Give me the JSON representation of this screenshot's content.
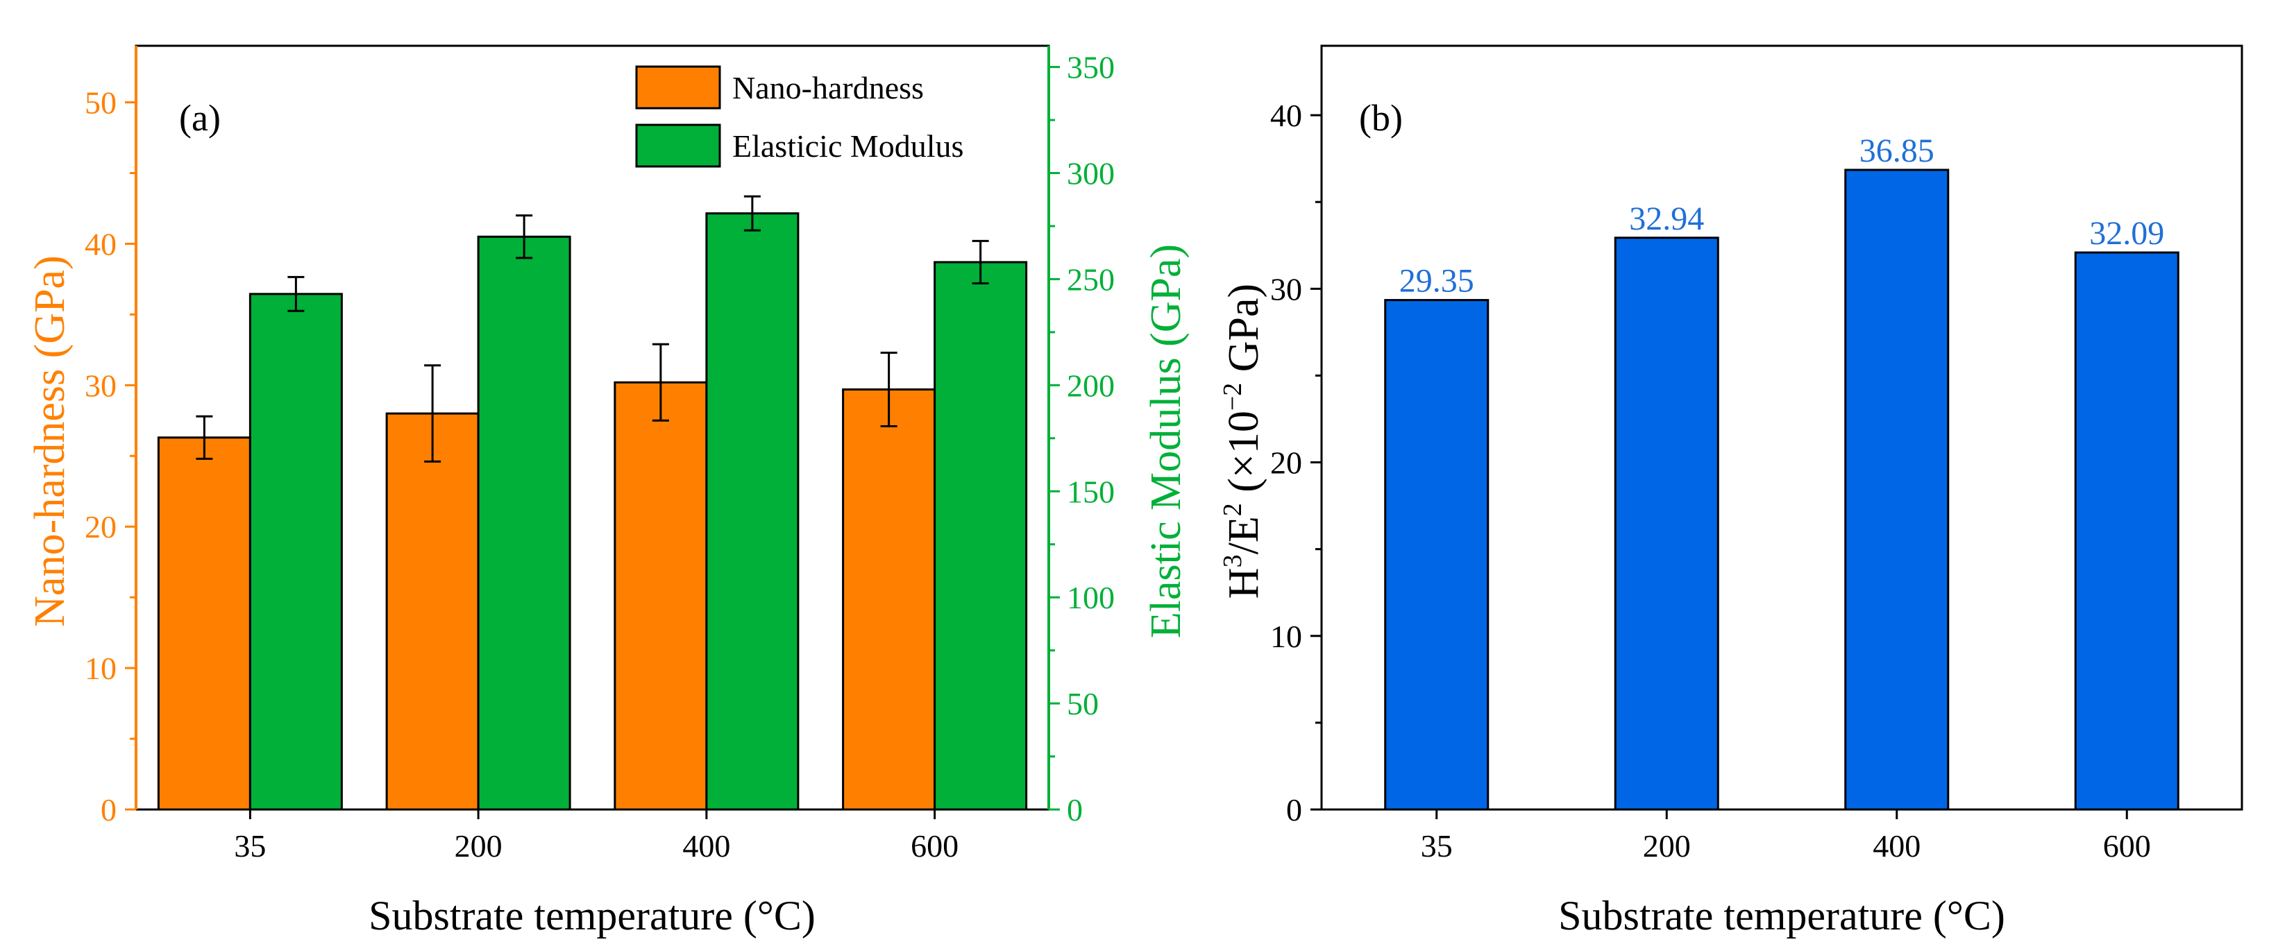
{
  "colors": {
    "hardness": "#FF8000",
    "modulus": "#00B038",
    "ratio": "#0066E6",
    "ratio_label": "#1F6FD8",
    "axis": "#000000"
  },
  "chart_data": [
    {
      "type": "bar",
      "panel_label": "(a)",
      "categories": [
        "35",
        "200",
        "400",
        "600"
      ],
      "xlabel": "Substrate temperature (°C)",
      "ylabel": "Nano-hardness (GPa)",
      "ylim": [
        0,
        54
      ],
      "yticks": [
        0,
        10,
        20,
        30,
        40,
        50
      ],
      "y2label": "Elastic Modulus (GPa)",
      "y2lim": [
        0,
        360
      ],
      "y2ticks": [
        0,
        50,
        100,
        150,
        200,
        250,
        300,
        350
      ],
      "legend_position": "top-right",
      "series": [
        {
          "name": "Nano-hardness",
          "axis": "left",
          "values": [
            26.3,
            28.0,
            30.2,
            29.7
          ],
          "errors": [
            1.5,
            3.4,
            2.7,
            2.6
          ]
        },
        {
          "name": "Elasticic Modulus",
          "axis": "right",
          "values": [
            243,
            270,
            281,
            258
          ],
          "errors": [
            8,
            10,
            8,
            10
          ]
        }
      ]
    },
    {
      "type": "bar",
      "panel_label": "(b)",
      "categories": [
        "35",
        "200",
        "400",
        "600"
      ],
      "xlabel": "Substrate temperature (°C)",
      "ylabel": {
        "h": "H",
        "h_exp": "3",
        "slash_e": "/E",
        "e_exp": "2",
        "units_open": " (×10",
        "units_exp": "−2",
        "units_close": " GPa)"
      },
      "ylim": [
        0,
        44
      ],
      "yticks": [
        0,
        10,
        20,
        30,
        40
      ],
      "series": [
        {
          "name": "H3/E2",
          "values": [
            29.35,
            32.94,
            36.85,
            32.09
          ],
          "labels": [
            "29.35",
            "32.94",
            "36.85",
            "32.09"
          ]
        }
      ]
    }
  ]
}
